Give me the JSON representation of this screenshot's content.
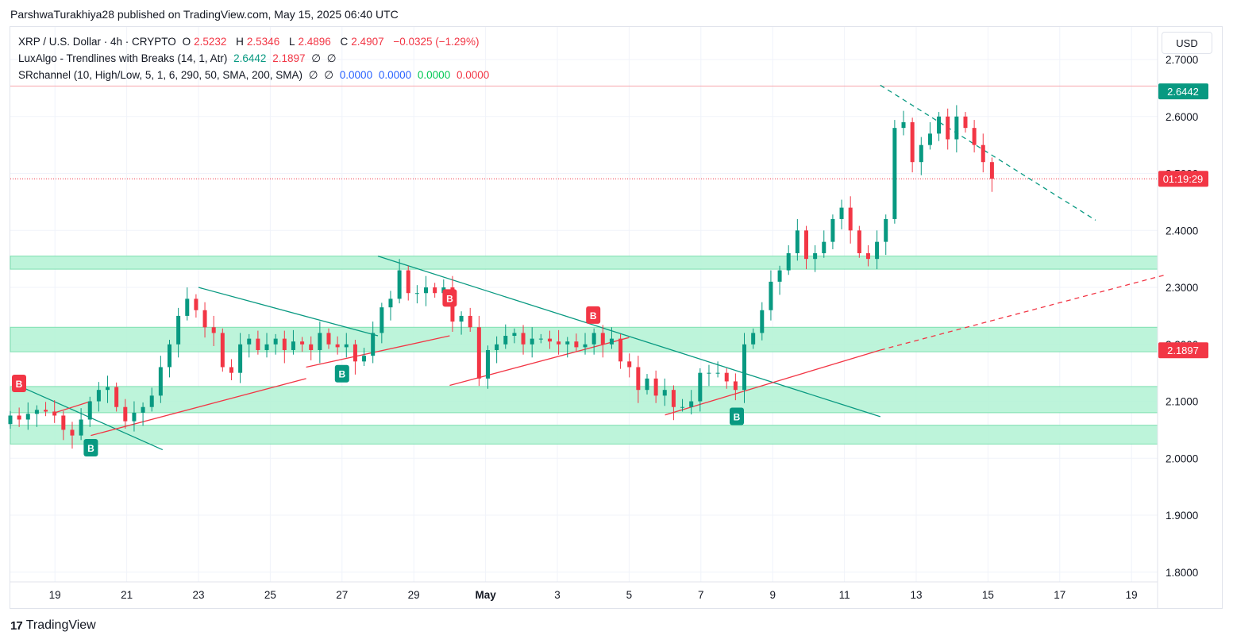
{
  "publisher": {
    "text": "ParshwaTurakhiya28 published on TradingView.com, May 15, 2025 06:40 UTC"
  },
  "legend": {
    "symbol": "XRP / U.S. Dollar · 4h · CRYPTO",
    "open_label": "O",
    "open": "2.5232",
    "high_label": "H",
    "high": "2.5346",
    "low_label": "L",
    "low": "2.4896",
    "close_label": "C",
    "close": "2.4907",
    "change": "−0.0325 (−1.29%)",
    "luxalgo_name": "LuxAlgo - Trendlines with Breaks (14, 1, Atr)",
    "luxalgo_v1": "2.6442",
    "luxalgo_v2": "2.1897",
    "luxalgo_null1": "∅",
    "luxalgo_null2": "∅",
    "sr_name": "SRchannel (10, High/Low, 5, 1, 6, 290, 50, SMA, 200, SMA)",
    "sr_null1": "∅",
    "sr_null2": "∅",
    "sr_v1": "0.0000",
    "sr_v2": "0.0000",
    "sr_v3": "0.0000",
    "sr_v4": "0.0000"
  },
  "currency_button": "USD",
  "footer": {
    "logo_icon": "17",
    "logo_text": "TradingView"
  },
  "colors": {
    "up": "#089981",
    "down": "#f23645",
    "zone": "#b2f2d4",
    "bear_line": "#089981",
    "bull_line": "#f23645",
    "grid": "#f0f3fa"
  },
  "chart_data": {
    "type": "candlestick",
    "title": "XRP / U.S. Dollar · 4h · CRYPTO",
    "y_axis_labels": [
      "2.7000",
      "2.6000",
      "2.5000",
      "2.4000",
      "2.3000",
      "2.2000",
      "2.1000",
      "2.0000",
      "1.9000",
      "1.8000"
    ],
    "x_axis_labels": [
      "19",
      "21",
      "23",
      "25",
      "27",
      "29",
      "May",
      "3",
      "5",
      "7",
      "9",
      "11",
      "13",
      "15",
      "17",
      "19"
    ],
    "ylim": [
      1.77,
      2.74
    ],
    "price_tags": [
      {
        "label": "2.6442",
        "value": 2.6442,
        "color": "#089981"
      },
      {
        "label": "01:19:29",
        "value": 2.4907,
        "color": "#f23645"
      },
      {
        "label": "2.1897",
        "value": 2.1897,
        "color": "#f23645"
      }
    ],
    "current_price": 2.4907,
    "resistance_level": 2.6536,
    "sr_zones": [
      {
        "low": 2.332,
        "high": 2.355
      },
      {
        "low": 2.187,
        "high": 2.23
      },
      {
        "low": 2.08,
        "high": 2.126
      },
      {
        "low": 2.025,
        "high": 2.058
      }
    ],
    "trendlines": [
      {
        "kind": "bear",
        "x1": "Apr 18",
        "y1": 2.127,
        "x2": "Apr 22",
        "y2": 2.015,
        "dashed": false
      },
      {
        "kind": "bear",
        "x1": "Apr 23",
        "y1": 2.3,
        "x2": "Apr 28",
        "y2": 2.215,
        "dashed": false
      },
      {
        "kind": "bear",
        "x1": "Apr 28",
        "y1": 2.355,
        "x2": "May 12",
        "y2": 2.073,
        "dashed": false
      },
      {
        "kind": "bear",
        "x1": "May 12",
        "y1": 2.655,
        "x2": "May 18",
        "y2": 2.418,
        "dashed": true
      },
      {
        "kind": "bull",
        "x1": "Apr 19",
        "y1": 2.08,
        "x2": "Apr 20",
        "y2": 2.1,
        "dashed": false
      },
      {
        "kind": "bull",
        "x1": "Apr 20",
        "y1": 2.04,
        "x2": "Apr 26",
        "y2": 2.14,
        "dashed": false
      },
      {
        "kind": "bull",
        "x1": "Apr 26",
        "y1": 2.16,
        "x2": "Apr 30",
        "y2": 2.215,
        "dashed": false
      },
      {
        "kind": "bull",
        "x1": "Apr 30",
        "y1": 2.128,
        "x2": "May 5",
        "y2": 2.212,
        "dashed": false
      },
      {
        "kind": "bull",
        "x1": "May 6",
        "y1": 2.076,
        "x2": "May 12",
        "y2": 2.19,
        "dashed": false
      },
      {
        "kind": "bull",
        "x1": "May 12",
        "y1": 2.19,
        "x2": "May 20",
        "y2": 2.323,
        "dashed": true
      }
    ],
    "signals": [
      {
        "label": "B",
        "type": "bull-break",
        "date": "Apr 20",
        "price": 2.045
      },
      {
        "label": "B",
        "type": "bear-break",
        "date": "Apr 18",
        "price": 2.105
      },
      {
        "label": "B",
        "type": "bull-break",
        "date": "Apr 27",
        "price": 2.175
      },
      {
        "label": "B",
        "type": "bear-break",
        "date": "Apr 30",
        "price": 2.255
      },
      {
        "label": "B",
        "type": "bear-break",
        "date": "May 4",
        "price": 2.225
      },
      {
        "label": "B",
        "type": "bull-break",
        "date": "May 8",
        "price": 2.1
      }
    ],
    "close_points": [
      [
        2.075,
        2.068,
        2.078,
        2.085,
        2.082,
        2.075,
        2.05,
        2.04,
        2.068,
        2.1,
        2.12,
        2.125,
        2.09,
        2.065,
        2.08,
        2.09,
        2.11,
        2.16,
        2.2,
        2.25,
        2.28,
        2.26,
        2.23,
        2.22,
        2.16,
        2.15,
        2.2,
        2.21,
        2.19,
        2.2,
        2.21,
        2.19,
        2.205,
        2.2,
        2.19,
        2.22,
        2.2,
        2.195,
        2.2,
        2.17,
        2.18,
        2.22,
        2.265,
        2.28,
        2.33,
        2.29,
        2.29,
        2.3,
        2.29,
        2.3,
        2.24,
        2.25,
        2.23
      ],
      [
        2.14,
        2.19,
        2.2,
        2.215,
        2.22,
        2.2,
        2.21,
        2.21,
        2.205,
        2.2,
        2.205,
        2.195,
        2.2,
        2.22,
        2.2,
        2.21,
        2.17,
        2.16,
        2.12,
        2.14,
        2.11,
        2.12,
        2.09,
        2.09,
        2.1,
        2.15,
        2.15,
        2.15,
        2.135,
        2.12,
        2.2,
        2.22,
        2.26,
        2.31,
        2.33,
        2.36,
        2.4,
        2.35,
        2.36,
        2.38,
        2.42,
        2.44,
        2.4,
        2.36,
        2.35,
        2.38,
        2.42,
        2.58,
        2.59,
        2.52,
        2.55,
        2.57,
        2.6,
        2.56,
        2.6,
        2.58,
        2.55,
        2.52,
        2.4907
      ]
    ],
    "time_span": {
      "first_bar": "Apr 18",
      "last_bar": "May 15"
    }
  }
}
